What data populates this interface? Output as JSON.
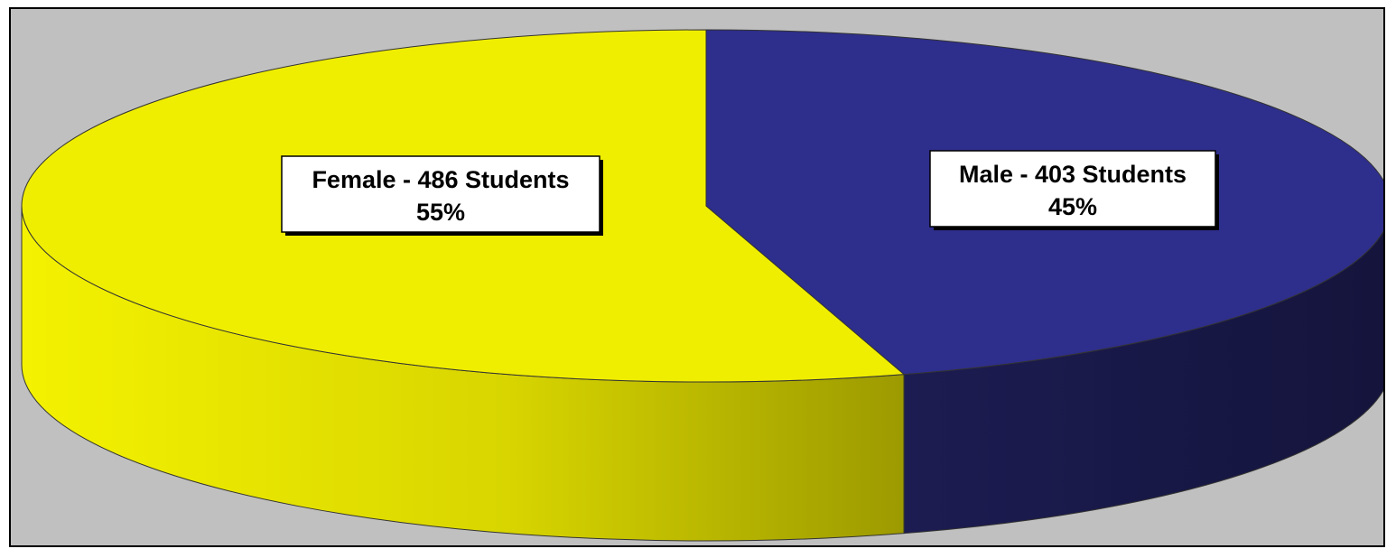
{
  "chart_data": {
    "type": "pie",
    "style": "3d",
    "title": "",
    "slices": [
      {
        "category": "Female",
        "label": "Female - 486 Students",
        "value": 486,
        "percent_label": "55%",
        "color": "#f0ee00",
        "side_color": "#c9c600"
      },
      {
        "category": "Male",
        "label": "Male - 403 Students",
        "value": 403,
        "percent_label": "45%",
        "color": "#2e2e8c",
        "side_color": "#181848"
      }
    ],
    "background_color": "#c0c0c0",
    "legend": "none"
  }
}
